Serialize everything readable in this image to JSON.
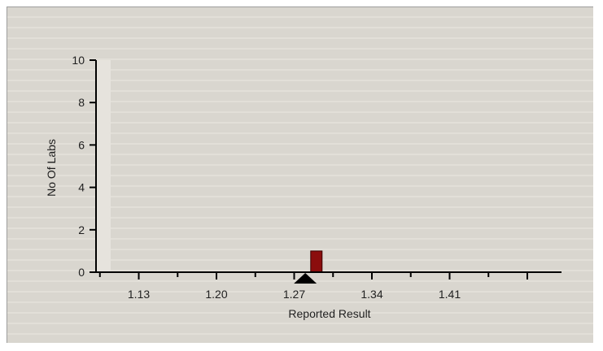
{
  "chart_data": {
    "type": "bar",
    "xlabel": "Reported Result",
    "ylabel": "No Of Labs",
    "x_ticks": [
      "1.13",
      "1.20",
      "1.27",
      "1.34",
      "1.41"
    ],
    "y_ticks": [
      "0",
      "2",
      "4",
      "6",
      "8",
      "10"
    ],
    "xlim": [
      1.0915,
      1.5108
    ],
    "ylim": [
      0,
      10
    ],
    "bars": [
      {
        "x": 1.29,
        "value": 1
      }
    ],
    "marker": {
      "x": 1.28,
      "shape": "triangle"
    },
    "colors": {
      "bar": "#8b0d0d",
      "axis": "#000000",
      "marker": "#000000"
    }
  }
}
